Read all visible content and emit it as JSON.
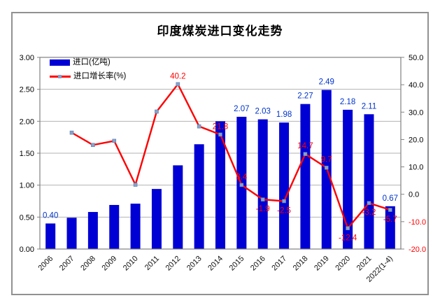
{
  "chart_data": {
    "type": "combo-bar-line",
    "title": "印度煤炭进口变化走势",
    "categories": [
      "2006",
      "2007",
      "2008",
      "2009",
      "2010",
      "2011",
      "2012",
      "2013",
      "2014",
      "2015",
      "2016",
      "2017",
      "2018",
      "2019",
      "2020",
      "2021",
      "2022(1-4)"
    ],
    "series": [
      {
        "name": "进口(亿吨)",
        "type": "bar",
        "axis": "left",
        "color": "#0000d4",
        "label_color": "#0033cc",
        "values": [
          0.4,
          0.49,
          0.58,
          0.69,
          0.71,
          0.94,
          1.31,
          1.64,
          2.0,
          2.07,
          2.03,
          1.98,
          2.27,
          2.49,
          2.18,
          2.11,
          0.67
        ],
        "data_labels": [
          "0.40",
          null,
          null,
          null,
          null,
          null,
          null,
          null,
          null,
          "2.07",
          "2.03",
          "1.98",
          "2.27",
          "2.49",
          "2.18",
          "2.11",
          "0.67"
        ]
      },
      {
        "name": "进口增长率(%)",
        "type": "line",
        "axis": "right",
        "color": "#ff0000",
        "marker_color": "#84a2cc",
        "label_color": "#ff0000",
        "values": [
          null,
          22.5,
          18.0,
          19.5,
          3.5,
          30.2,
          40.2,
          24.8,
          21.8,
          3.4,
          -1.9,
          -2.5,
          14.7,
          9.7,
          -12.4,
          -3.2,
          -5.7
        ],
        "data_labels": [
          null,
          null,
          null,
          null,
          null,
          null,
          "40.2",
          null,
          "21.8",
          "3.4",
          "-1.9",
          "-2.5",
          "14.7",
          "9.7",
          "-12.4",
          "-3.2",
          "-5.7"
        ]
      }
    ],
    "left_axis": {
      "min": 0,
      "max": 3.0,
      "step": 0.5,
      "tick_labels": [
        "0.00",
        "0.50",
        "1.00",
        "1.50",
        "2.00",
        "2.50",
        "3.00"
      ]
    },
    "right_axis": {
      "min": -20,
      "max": 50,
      "step": 10,
      "tick_labels": [
        "-20.0",
        "-10.0",
        "0.0",
        "10.0",
        "20.0",
        "30.0",
        "40.0",
        "50.0"
      ],
      "negative_color": "#ff0000"
    },
    "grid": {
      "horizontal": true,
      "color": "#b3b3b3"
    },
    "legend_position": "top-left-inside",
    "colors": {
      "axis_line": "#808080",
      "tick_text": "#000000",
      "category_text": "#111111"
    }
  }
}
